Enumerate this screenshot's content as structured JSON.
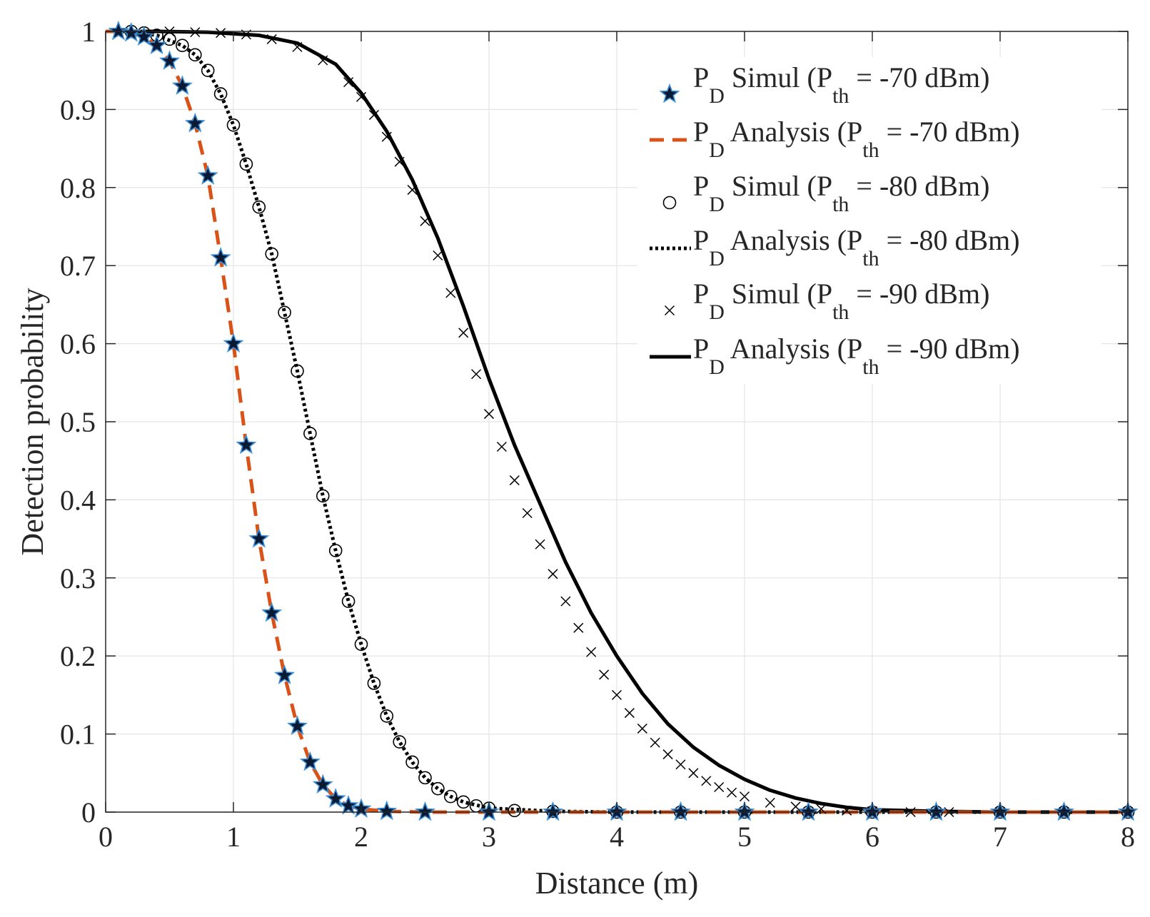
{
  "chart_data": {
    "type": "line",
    "xlabel": "Distance (m)",
    "ylabel": "Detection probability",
    "xlim": [
      0,
      8
    ],
    "ylim": [
      0,
      1
    ],
    "xticks": [
      0,
      1,
      2,
      3,
      4,
      5,
      6,
      7,
      8
    ],
    "yticks": [
      0,
      0.1,
      0.2,
      0.3,
      0.4,
      0.5,
      0.6,
      0.7,
      0.8,
      0.9,
      1
    ],
    "xtick_labels": [
      "0",
      "1",
      "2",
      "3",
      "4",
      "5",
      "6",
      "7",
      "8"
    ],
    "ytick_labels": [
      "0",
      "0.1",
      "0.2",
      "0.3",
      "0.4",
      "0.5",
      "0.6",
      "0.7",
      "0.8",
      "0.9",
      "1"
    ],
    "grid": true,
    "legend_position": "top-right",
    "series": [
      {
        "name": "P_D Simul (P_th = -70 dBm)",
        "style": "marker-star",
        "color": "#0b1a33",
        "edge_color": "#3b8fd8",
        "x": [
          0.1,
          0.2,
          0.3,
          0.4,
          0.5,
          0.6,
          0.7,
          0.8,
          0.9,
          1.0,
          1.1,
          1.2,
          1.3,
          1.4,
          1.5,
          1.6,
          1.7,
          1.8,
          1.9,
          2.0,
          2.2,
          2.5,
          3.0,
          3.5,
          4.0,
          4.5,
          5.0,
          5.5,
          6.0,
          6.5,
          7.0,
          7.5,
          8.0
        ],
        "y": [
          1.0,
          0.998,
          0.993,
          0.982,
          0.962,
          0.93,
          0.882,
          0.815,
          0.71,
          0.6,
          0.47,
          0.35,
          0.255,
          0.175,
          0.11,
          0.064,
          0.035,
          0.017,
          0.008,
          0.004,
          0.001,
          0.0,
          0.0,
          0.0,
          0.0,
          0.0,
          0.0,
          0.0,
          0.0,
          0.0,
          0.0,
          0.0,
          0.0
        ]
      },
      {
        "name": "P_D Analysis (P_th = -70 dBm)",
        "style": "dashed",
        "color": "#d95319",
        "x": [
          0.0,
          0.1,
          0.2,
          0.3,
          0.4,
          0.5,
          0.6,
          0.7,
          0.8,
          0.9,
          1.0,
          1.1,
          1.2,
          1.3,
          1.4,
          1.5,
          1.6,
          1.7,
          1.8,
          1.9,
          2.0,
          2.2,
          2.5,
          3.0,
          4.0,
          5.0,
          6.0,
          7.0,
          8.0
        ],
        "y": [
          1.0,
          1.0,
          0.998,
          0.993,
          0.982,
          0.962,
          0.93,
          0.882,
          0.815,
          0.71,
          0.6,
          0.47,
          0.35,
          0.255,
          0.175,
          0.11,
          0.064,
          0.035,
          0.017,
          0.008,
          0.004,
          0.001,
          0.0,
          0.0,
          0.0,
          0.0,
          0.0,
          0.0,
          0.0
        ]
      },
      {
        "name": "P_D Simul (P_th = -80 dBm)",
        "style": "marker-circle",
        "color": "#000000",
        "x": [
          0.2,
          0.3,
          0.4,
          0.5,
          0.6,
          0.7,
          0.8,
          0.9,
          1.0,
          1.1,
          1.2,
          1.3,
          1.4,
          1.5,
          1.6,
          1.7,
          1.8,
          1.9,
          2.0,
          2.1,
          2.2,
          2.3,
          2.4,
          2.5,
          2.6,
          2.7,
          2.8,
          2.9,
          3.0,
          3.2,
          3.5,
          4.0,
          4.5,
          5.0,
          5.5,
          6.0,
          6.5,
          7.0,
          7.5,
          8.0
        ],
        "y": [
          1.0,
          0.998,
          0.995,
          0.99,
          0.982,
          0.97,
          0.95,
          0.92,
          0.88,
          0.83,
          0.775,
          0.715,
          0.64,
          0.565,
          0.485,
          0.405,
          0.335,
          0.27,
          0.215,
          0.165,
          0.123,
          0.09,
          0.064,
          0.044,
          0.03,
          0.02,
          0.013,
          0.008,
          0.005,
          0.002,
          0.001,
          0.0,
          0.0,
          0.0,
          0.0,
          0.0,
          0.0,
          0.0,
          0.0,
          0.0
        ]
      },
      {
        "name": "P_D Analysis  (P_th = -80 dBm)",
        "style": "dotted",
        "color": "#000000",
        "x": [
          0.0,
          0.2,
          0.4,
          0.6,
          0.7,
          0.8,
          0.9,
          1.0,
          1.1,
          1.2,
          1.3,
          1.4,
          1.5,
          1.6,
          1.7,
          1.8,
          1.9,
          2.0,
          2.1,
          2.2,
          2.3,
          2.4,
          2.5,
          2.6,
          2.7,
          2.8,
          3.0,
          3.5,
          4.0,
          5.0,
          6.0,
          7.0,
          8.0
        ],
        "y": [
          1.0,
          1.0,
          0.995,
          0.982,
          0.97,
          0.95,
          0.92,
          0.88,
          0.83,
          0.775,
          0.715,
          0.64,
          0.565,
          0.485,
          0.405,
          0.335,
          0.27,
          0.215,
          0.165,
          0.123,
          0.09,
          0.064,
          0.044,
          0.03,
          0.02,
          0.013,
          0.005,
          0.001,
          0.0,
          0.0,
          0.0,
          0.0,
          0.0
        ]
      },
      {
        "name": "P_D Simul (P_th = -90 dBm)",
        "style": "marker-x",
        "color": "#000000",
        "x": [
          0.5,
          0.7,
          0.9,
          1.1,
          1.3,
          1.5,
          1.7,
          1.9,
          2.0,
          2.1,
          2.2,
          2.3,
          2.4,
          2.5,
          2.6,
          2.7,
          2.8,
          2.9,
          3.0,
          3.1,
          3.2,
          3.3,
          3.4,
          3.5,
          3.6,
          3.7,
          3.8,
          3.9,
          4.0,
          4.1,
          4.2,
          4.3,
          4.4,
          4.5,
          4.6,
          4.7,
          4.8,
          4.9,
          5.0,
          5.2,
          5.4,
          5.6,
          5.8,
          6.0,
          6.3,
          6.6,
          7.0,
          7.5,
          8.0
        ],
        "y": [
          1.0,
          0.999,
          0.998,
          0.996,
          0.99,
          0.98,
          0.963,
          0.935,
          0.916,
          0.893,
          0.865,
          0.833,
          0.797,
          0.757,
          0.713,
          0.665,
          0.614,
          0.561,
          0.51,
          0.468,
          0.425,
          0.383,
          0.343,
          0.305,
          0.27,
          0.236,
          0.205,
          0.176,
          0.15,
          0.127,
          0.107,
          0.089,
          0.074,
          0.061,
          0.05,
          0.04,
          0.032,
          0.025,
          0.02,
          0.012,
          0.007,
          0.004,
          0.002,
          0.001,
          0.0,
          0.0,
          0.0,
          0.0,
          0.0
        ]
      },
      {
        "name": "P_D Analysis (P_th = -90 dBm)",
        "style": "solid",
        "color": "#000000",
        "x": [
          0.0,
          0.4,
          0.8,
          1.2,
          1.5,
          1.8,
          2.0,
          2.2,
          2.4,
          2.6,
          2.8,
          3.0,
          3.2,
          3.4,
          3.6,
          3.8,
          4.0,
          4.2,
          4.4,
          4.6,
          4.8,
          5.0,
          5.2,
          5.4,
          5.6,
          5.8,
          6.0,
          6.5,
          7.0,
          8.0
        ],
        "y": [
          1.0,
          1.0,
          0.999,
          0.995,
          0.985,
          0.958,
          0.921,
          0.872,
          0.81,
          0.735,
          0.648,
          0.555,
          0.47,
          0.395,
          0.32,
          0.255,
          0.2,
          0.152,
          0.113,
          0.083,
          0.06,
          0.042,
          0.028,
          0.018,
          0.011,
          0.006,
          0.003,
          0.001,
          0.0,
          0.0
        ]
      }
    ],
    "legend": [
      {
        "base": "P",
        "sub": "D",
        "text": " Simul (P",
        "sub2": "th",
        "tail": " = -70 dBm)"
      },
      {
        "base": "P",
        "sub": "D",
        "text": " Analysis (P",
        "sub2": "th",
        "tail": " = -70 dBm)"
      },
      {
        "base": "P",
        "sub": "D",
        "text": " Simul (P",
        "sub2": "th",
        "tail": " = -80 dBm)"
      },
      {
        "base": "P",
        "sub": "D",
        "text": " Analysis  (P",
        "sub2": "th",
        "tail": " = -80 dBm)"
      },
      {
        "base": "P",
        "sub": "D",
        "text": " Simul (P",
        "sub2": "th",
        "tail": " = -90 dBm)"
      },
      {
        "base": "P",
        "sub": "D",
        "text": " Analysis (P",
        "sub2": "th",
        "tail": " = -90 dBm)"
      }
    ]
  }
}
